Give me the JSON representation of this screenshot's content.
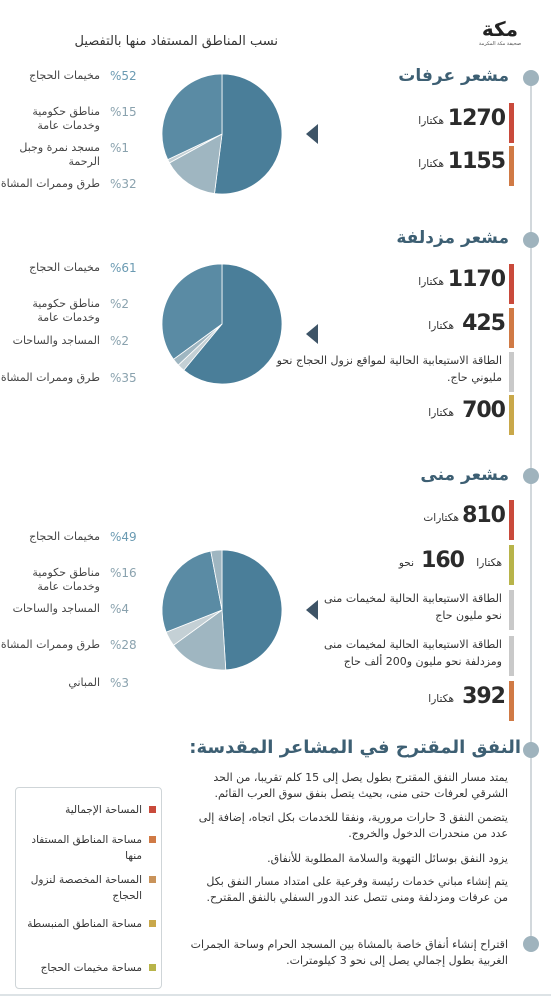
{
  "brand": {
    "name": "مكة",
    "tagline": "صحيفة مكة المكرمة"
  },
  "header": {
    "chart_title": "نسب المناطق المستفاد منها بالتفصيل"
  },
  "colors": {
    "timeline": "#d2d8dc",
    "node": "#9fb3bd",
    "title": "#3d5f73",
    "pie_main": "#4a7e99",
    "pie_second": "#5a8ba4",
    "pie_light": "#9fb6c1",
    "pie_grey": "#c4d0d5",
    "arrow": "#3e5467",
    "bar_red": "#c94a3b",
    "bar_orange": "#d07a45",
    "bar_tan": "#c9935a",
    "bar_gold": "#c9a84a",
    "bar_olive": "#b8b44a",
    "bar_grey": "#c9c9c9"
  },
  "sections": {
    "arafat": {
      "title": "مشعر عرفات",
      "stats": [
        {
          "number": "1270",
          "unit": "هكتارا"
        },
        {
          "number": "1155",
          "unit": "هكتارا"
        }
      ],
      "legend": [
        {
          "pct": "%52",
          "label": "مخيمات الحجاج"
        },
        {
          "pct": "%15",
          "label": "مناطق حكومية وخدمات عامة"
        },
        {
          "pct": "%1",
          "label": "مسجد نمرة وجبل الرحمة"
        },
        {
          "pct": "%32",
          "label": "طرق وممرات المشاة"
        }
      ]
    },
    "muzdalifah": {
      "title": "مشعر مزدلفة",
      "stats": [
        {
          "number": "1170",
          "unit": "هكتارا"
        },
        {
          "number": "425",
          "unit": "هكتارا"
        },
        {
          "text": "الطاقة الاستيعابية الحالية لمواقع نزول الحجاج نحو مليوني حاج."
        },
        {
          "number": "700",
          "unit": "هكتارا"
        }
      ],
      "legend": [
        {
          "pct": "%61",
          "label": "مخيمات الحجاج"
        },
        {
          "pct": "%2",
          "label": "مناطق حكومية وخدمات عامة"
        },
        {
          "pct": "%2",
          "label": "المساجد والساحات"
        },
        {
          "pct": "%35",
          "label": "طرق وممرات المشاة"
        }
      ]
    },
    "mina": {
      "title": "مشعر منى",
      "stats": [
        {
          "number": "810",
          "unit": "هكتارات"
        },
        {
          "prefix": "نحو",
          "number": "160",
          "unit": "هكتارا"
        },
        {
          "text": "الطاقة الاستيعابية الحالية لمخيمات منى نحو مليون حاج"
        },
        {
          "text": "الطاقة الاستيعابية الحالية لمخيمات منى ومزدلفة نحو مليون و200 ألف حاج"
        },
        {
          "number": "392",
          "unit": "هكتارا"
        }
      ],
      "legend": [
        {
          "pct": "%49",
          "label": "مخيمات الحجاج"
        },
        {
          "pct": "%16",
          "label": "مناطق حكومية وخدمات عامة"
        },
        {
          "pct": "%4",
          "label": "المساجد والساحات"
        },
        {
          "pct": "%28",
          "label": "طرق وممرات المشاة"
        },
        {
          "pct": "%3",
          "label": "المباني"
        }
      ]
    }
  },
  "tunnel": {
    "title": "النفق المقترح في المشاعر المقدسة:",
    "paragraphs": [
      "يمتد مسار النفق المقترح بطول يصل إلى 15 كلم تقريبا، من الحد الشرقي لعرفات حتى منى، بحيث يتصل بنفق سوق العرب القائم.",
      "يتضمن النفق 3 حارات مرورية، ونفقا للخدمات بكل اتجاه، إضافة إلى عدد من منحدرات الدخول والخروج.",
      "يزود النفق بوسائل التهوية والسلامة المطلوبة للأنفاق.",
      "يتم إنشاء مباني خدمات رئيسة وفرعية على امتداد مسار النفق بكل من عرفات ومزدلفة ومنى تتصل عند الدور السفلي بالنفق المقترح.",
      "اقتراح إنشاء أنفاق خاصة بالمشاة بين المسجد الحرام وساحة الجمرات الغربية بطول إجمالي يصل إلى نحو 3 كيلومترات."
    ]
  },
  "key": [
    {
      "label": "المساحة الإجمالية",
      "color": "#c94a3b"
    },
    {
      "label": "مساحة المناطق المستفاد منها",
      "color": "#d07a45"
    },
    {
      "label": "المساحة المخصصة لنزول الحجاج",
      "color": "#c9935a"
    },
    {
      "label": "مساحة المناطق المنبسطة",
      "color": "#c9a84a"
    },
    {
      "label": "مساحة مخيمات الحجاج",
      "color": "#b8b44a"
    }
  ],
  "chart_data": [
    {
      "type": "pie",
      "title": "مشعر عرفات",
      "categories": [
        "مخيمات الحجاج",
        "مناطق حكومية وخدمات عامة",
        "مسجد نمرة وجبل الرحمة",
        "طرق وممرات المشاة"
      ],
      "values": [
        52,
        15,
        1,
        32
      ]
    },
    {
      "type": "pie",
      "title": "مشعر مزدلفة",
      "categories": [
        "مخيمات الحجاج",
        "مناطق حكومية وخدمات عامة",
        "المساجد والساحات",
        "طرق وممرات المشاة"
      ],
      "values": [
        61,
        2,
        2,
        35
      ]
    },
    {
      "type": "pie",
      "title": "مشعر منى",
      "categories": [
        "مخيمات الحجاج",
        "مناطق حكومية وخدمات عامة",
        "المساجد والساحات",
        "طرق وممرات المشاة",
        "المباني"
      ],
      "values": [
        49,
        16,
        4,
        28,
        3
      ]
    }
  ]
}
